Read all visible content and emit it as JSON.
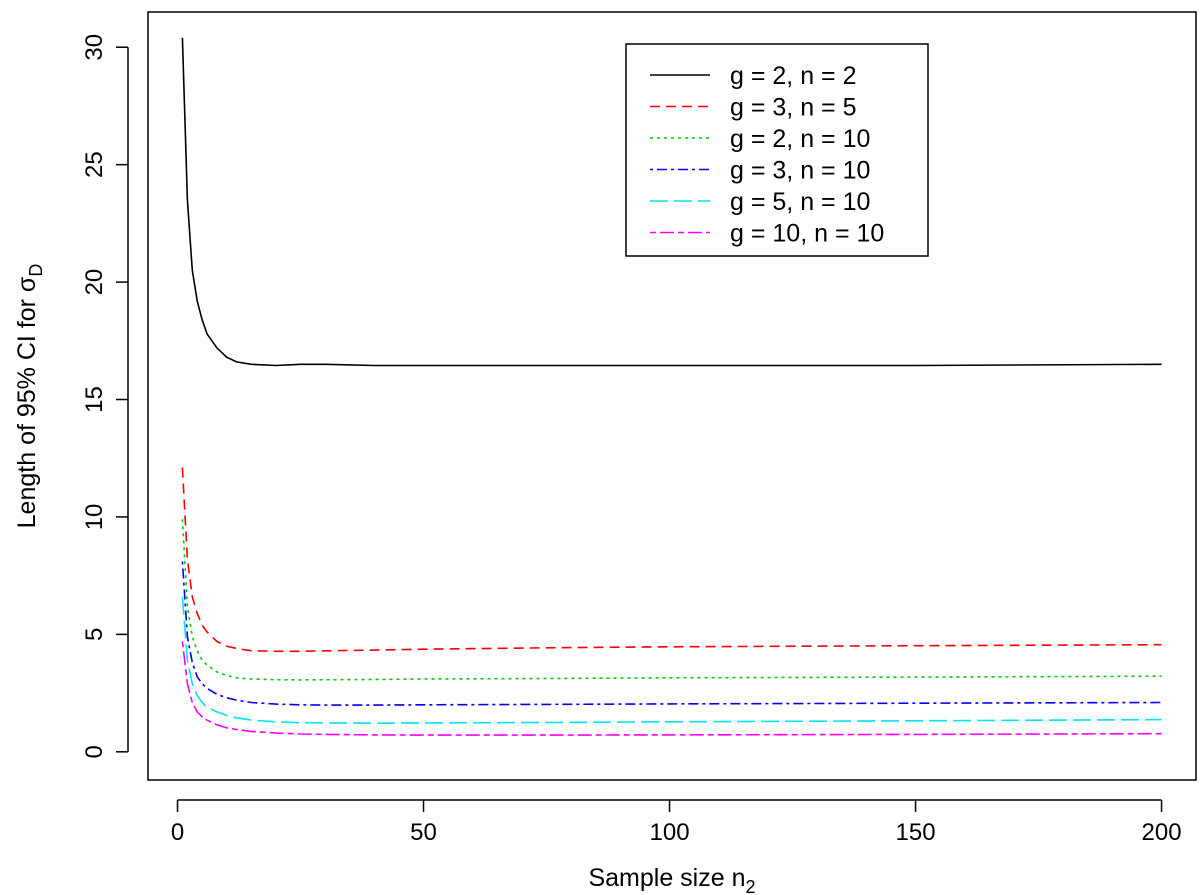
{
  "chart_data": {
    "type": "line",
    "title": "",
    "xlabel": "Sample size n",
    "xlabel_sub": "2",
    "ylabel": "Length of 95% CI for σ",
    "ylabel_sub": "D",
    "xlim": [
      -6,
      207
    ],
    "ylim": [
      -1.2,
      31.5
    ],
    "xticks": [
      0,
      50,
      100,
      150,
      200
    ],
    "yticks": [
      0,
      5,
      10,
      15,
      20,
      25,
      30
    ],
    "grid": false,
    "legend_position": "top-right",
    "series": [
      {
        "name": "g = 2, n = 2",
        "color": "#000000",
        "dash": "solid",
        "x": [
          1,
          2,
          3,
          4,
          5,
          6,
          8,
          10,
          12,
          15,
          20,
          25,
          30,
          40,
          50,
          75,
          100,
          150,
          200
        ],
        "y": [
          30.4,
          23.5,
          20.5,
          19.2,
          18.4,
          17.8,
          17.2,
          16.8,
          16.6,
          16.5,
          16.45,
          16.5,
          16.5,
          16.45,
          16.45,
          16.45,
          16.45,
          16.45,
          16.5
        ]
      },
      {
        "name": "g = 3, n = 5",
        "color": "#ff0000",
        "dash": "dashed",
        "x": [
          1,
          2,
          3,
          4,
          5,
          6,
          8,
          10,
          12,
          15,
          20,
          25,
          30,
          40,
          50,
          75,
          100,
          150,
          200
        ],
        "y": [
          12.1,
          8.2,
          6.6,
          5.9,
          5.4,
          5.1,
          4.7,
          4.5,
          4.4,
          4.3,
          4.28,
          4.28,
          4.3,
          4.33,
          4.37,
          4.43,
          4.47,
          4.52,
          4.56
        ]
      },
      {
        "name": "g = 2, n = 10",
        "color": "#00cd00",
        "dash": "dotted",
        "x": [
          1,
          2,
          3,
          4,
          5,
          6,
          8,
          10,
          12,
          15,
          20,
          25,
          30,
          40,
          50,
          75,
          100,
          150,
          200
        ],
        "y": [
          9.9,
          6.2,
          4.9,
          4.3,
          3.9,
          3.7,
          3.4,
          3.25,
          3.15,
          3.1,
          3.07,
          3.06,
          3.07,
          3.08,
          3.1,
          3.12,
          3.15,
          3.18,
          3.22
        ]
      },
      {
        "name": "g = 3, n = 10",
        "color": "#0000ff",
        "dash": "dotdash",
        "x": [
          1,
          2,
          3,
          4,
          5,
          6,
          8,
          10,
          12,
          15,
          20,
          25,
          30,
          40,
          50,
          75,
          100,
          150,
          200
        ],
        "y": [
          8.1,
          4.9,
          3.8,
          3.2,
          2.9,
          2.7,
          2.45,
          2.3,
          2.2,
          2.1,
          2.03,
          2.0,
          1.99,
          1.99,
          2.0,
          2.02,
          2.04,
          2.07,
          2.1
        ]
      },
      {
        "name": "g = 5, n = 10",
        "color": "#00e5ee",
        "dash": "longdash",
        "x": [
          1,
          2,
          3,
          4,
          5,
          6,
          8,
          10,
          12,
          15,
          20,
          25,
          30,
          40,
          50,
          75,
          100,
          150,
          200
        ],
        "y": [
          6.6,
          3.9,
          2.9,
          2.4,
          2.1,
          1.9,
          1.7,
          1.55,
          1.45,
          1.35,
          1.28,
          1.24,
          1.23,
          1.22,
          1.23,
          1.25,
          1.28,
          1.32,
          1.37
        ]
      },
      {
        "name": "g = 10, n = 10",
        "color": "#ff00ff",
        "dash": "twodash",
        "x": [
          1,
          2,
          3,
          4,
          5,
          6,
          8,
          10,
          12,
          15,
          20,
          25,
          30,
          40,
          50,
          75,
          100,
          150,
          200
        ],
        "y": [
          4.7,
          2.9,
          2.1,
          1.7,
          1.5,
          1.35,
          1.15,
          1.02,
          0.95,
          0.87,
          0.8,
          0.76,
          0.74,
          0.72,
          0.71,
          0.71,
          0.72,
          0.74,
          0.77
        ]
      }
    ]
  }
}
